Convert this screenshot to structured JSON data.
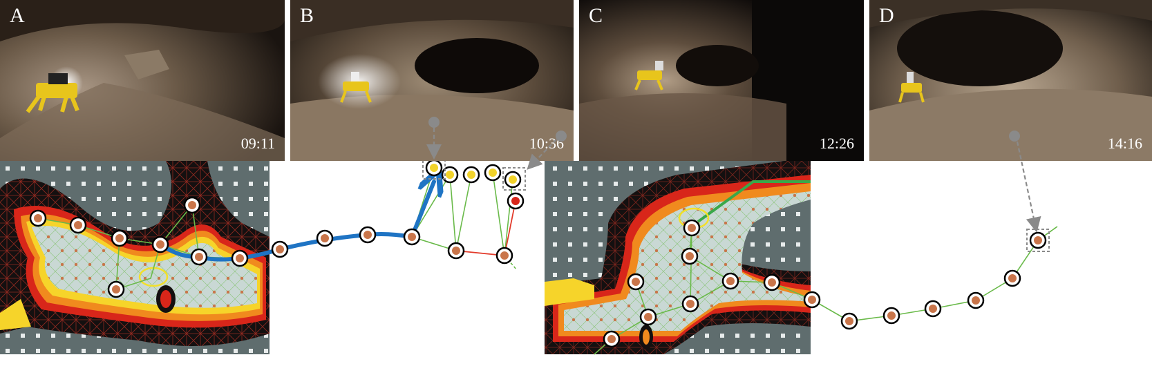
{
  "panels": [
    {
      "letter": "A",
      "time": "09:11"
    },
    {
      "letter": "B",
      "time": "10:36"
    },
    {
      "letter": "C",
      "time": "12:26"
    },
    {
      "letter": "D",
      "time": "14:16"
    }
  ],
  "colors": {
    "cave_wall": "#6b5a48",
    "robot_body": "#e8c51c",
    "costmap_background": "#5f6d6e",
    "free_space": "#c9d8d4",
    "obstacle_core": "#141010",
    "inflation_red": "#d8261a",
    "inflation_orange": "#f08a1e",
    "inflation_yellow": "#f6d42a",
    "path_blue": "#1f74c4",
    "graph_edge_green": "#6aba4a",
    "graph_edge_red": "#e23a2a",
    "node_fill": "#c9754a",
    "highlight_node_fill": "#f2d32a",
    "dashed_marker": "#8a8a8a"
  }
}
